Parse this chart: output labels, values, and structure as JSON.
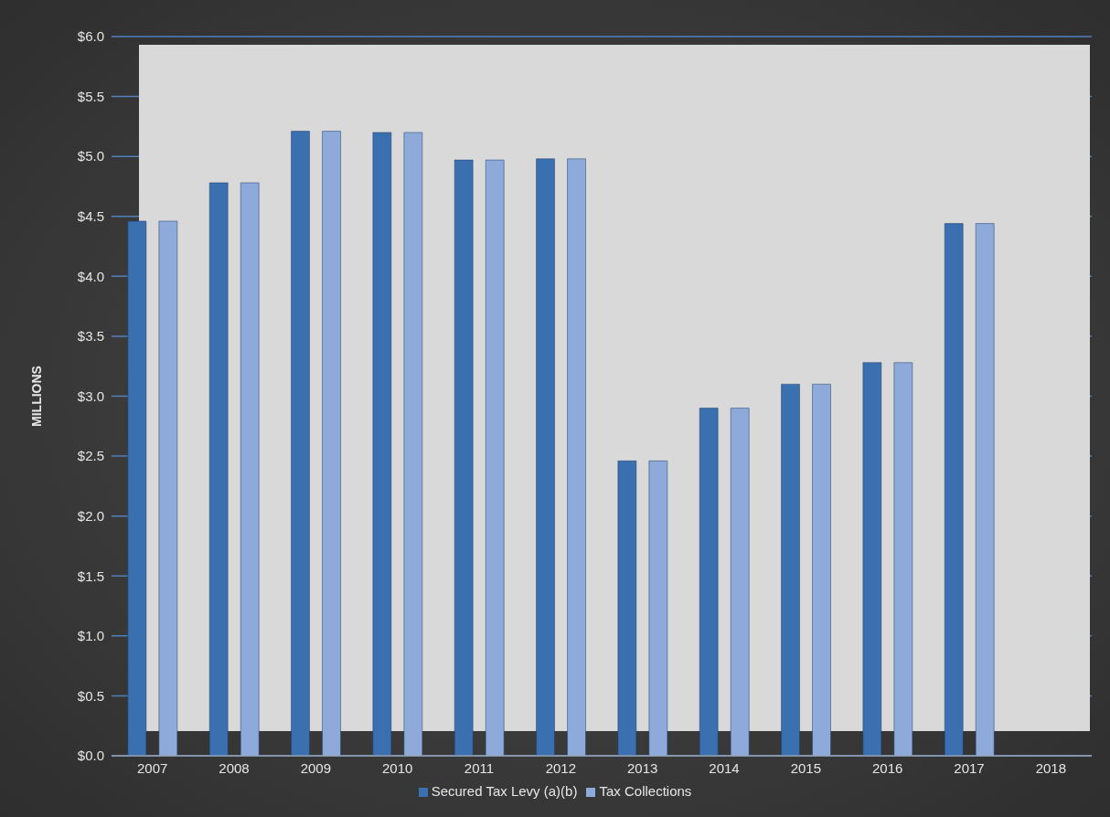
{
  "chart_data": {
    "type": "bar",
    "ylabel": "MILLIONS",
    "categories": [
      "2007",
      "2008",
      "2009",
      "2010",
      "2011",
      "2012",
      "2013",
      "2014",
      "2015",
      "2016",
      "2017",
      "2018"
    ],
    "series": [
      {
        "name": "Secured Tax Levy (a)(b)",
        "color": "#3a6fb0",
        "values": [
          4.46,
          4.78,
          5.21,
          5.2,
          4.97,
          4.98,
          2.46,
          2.9,
          3.1,
          3.28,
          4.44,
          0
        ]
      },
      {
        "name": "Tax Collections",
        "color": "#8eaadb",
        "values": [
          4.46,
          4.78,
          5.21,
          5.2,
          4.97,
          4.98,
          2.46,
          2.9,
          3.1,
          3.28,
          4.44,
          0
        ]
      }
    ],
    "ylim": [
      0,
      6
    ],
    "yticks": [
      {
        "value": 0,
        "label": "$0.0"
      },
      {
        "value": 0.5,
        "label": "$0.5"
      },
      {
        "value": 1,
        "label": "$1.0"
      },
      {
        "value": 1.5,
        "label": "$1.5"
      },
      {
        "value": 2,
        "label": "$2.0"
      },
      {
        "value": 2.5,
        "label": "$2.5"
      },
      {
        "value": 3,
        "label": "$3.0"
      },
      {
        "value": 3.5,
        "label": "$3.5"
      },
      {
        "value": 4,
        "label": "$4.0"
      },
      {
        "value": 4.5,
        "label": "$4.5"
      },
      {
        "value": 5,
        "label": "$5.0"
      },
      {
        "value": 5.5,
        "label": "$5.5"
      },
      {
        "value": 6,
        "label": "$6.0"
      }
    ],
    "grid": "y",
    "legend": "bottom"
  }
}
